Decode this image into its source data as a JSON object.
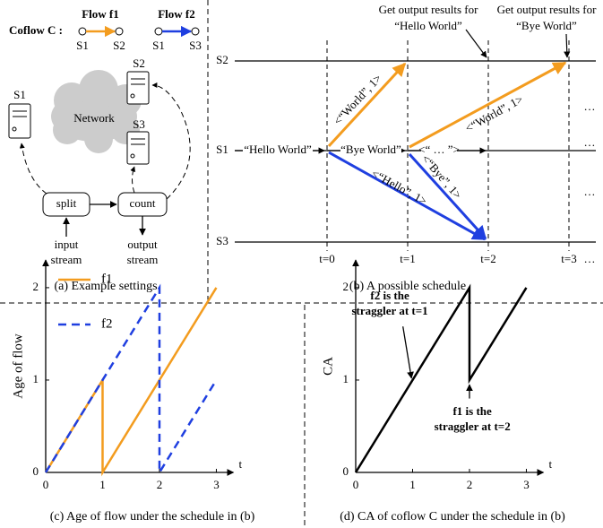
{
  "diagram_a": {
    "coflow_label": "Coflow C :",
    "flows": [
      {
        "name": "Flow f1",
        "from": "S1",
        "to": "S2"
      },
      {
        "name": "Flow f2",
        "from": "S1",
        "to": "S3"
      }
    ],
    "network": "Network",
    "servers": [
      "S1",
      "S2",
      "S3"
    ],
    "split": "split",
    "count": "count",
    "input": [
      "input",
      "stream"
    ],
    "output": [
      "output",
      "stream"
    ],
    "caption": "(a) Example settings"
  },
  "diagram_b": {
    "lanes": [
      "S2",
      "S1",
      "S3"
    ],
    "times": [
      "t=0",
      "t=1",
      "t=2",
      "t=3"
    ],
    "hello": "“Hello World”",
    "bye": "“Bye World”",
    "messages": [
      "<“World”, 1>",
      "<“World”, 1>",
      "<“Hello”, 1>",
      "<“Bye”, 1>",
      "<“ … ”>"
    ],
    "notes": [
      [
        "Get output results for",
        "“Hello World”"
      ],
      [
        "Get output results for",
        "“Bye World”"
      ]
    ],
    "ellipses": [
      "…",
      "…",
      "…",
      "…"
    ],
    "caption": "(b) A possible schedule"
  },
  "chart_data": [
    {
      "type": "line",
      "xlabel": "t",
      "ylabel": "Age of flow",
      "xlim": [
        0,
        3.3
      ],
      "ylim": [
        0,
        2.3
      ],
      "xticks": [
        0,
        1,
        2,
        3
      ],
      "yticks": [
        0,
        1,
        2
      ],
      "legend": "upper left",
      "series": [
        {
          "name": "f1",
          "color": "#f39c1f",
          "linestyle": "solid",
          "x": [
            0,
            1,
            1,
            3
          ],
          "values": [
            0,
            1,
            0,
            2
          ]
        },
        {
          "name": "f2",
          "color": "#1f3fe0",
          "linestyle": "dashed",
          "x": [
            0,
            1,
            2,
            2,
            3
          ],
          "values": [
            0,
            1,
            2,
            0,
            1
          ]
        }
      ],
      "caption": "(c) Age of flow under the schedule in (b)"
    },
    {
      "type": "line",
      "xlabel": "t",
      "ylabel": "CA",
      "xlim": [
        0,
        3.3
      ],
      "ylim": [
        0,
        2.3
      ],
      "xticks": [
        0,
        1,
        2,
        3
      ],
      "yticks": [
        0,
        1,
        2
      ],
      "series": [
        {
          "color": "#000000",
          "linestyle": "solid",
          "x": [
            0,
            2,
            2,
            3
          ],
          "values": [
            0,
            2,
            1,
            2
          ]
        }
      ],
      "annotations": [
        [
          "f2 is the",
          "straggler at t=1"
        ],
        [
          "f1 is the",
          "straggler at t=2"
        ]
      ],
      "caption": "(d) CA of coflow C under the schedule in (b)"
    }
  ]
}
